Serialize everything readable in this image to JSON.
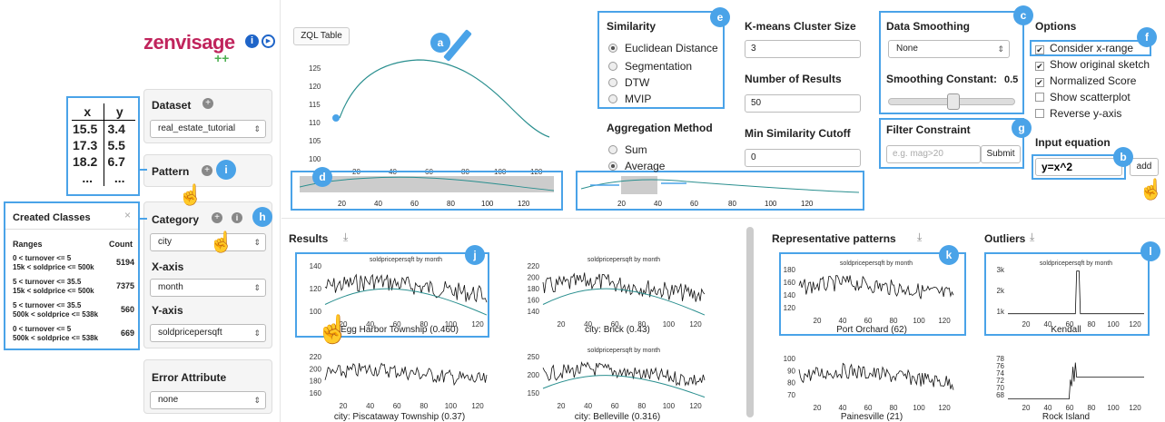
{
  "logo": {
    "text": "zenvisage",
    "plus": "++"
  },
  "left": {
    "dataset_label": "Dataset",
    "dataset_value": "real_estate_tutorial",
    "pattern_label": "Pattern",
    "category_label": "Category",
    "category_value": "city",
    "xaxis_label": "X-axis",
    "xaxis_value": "month",
    "yaxis_label": "Y-axis",
    "yaxis_value": "soldpricepersqft",
    "error_label": "Error Attribute",
    "error_value": "none"
  },
  "xy_table": {
    "headers": [
      "x",
      "y"
    ],
    "rows": [
      [
        "15.5",
        "3.4"
      ],
      [
        "17.3",
        "5.5"
      ],
      [
        "18.2",
        "6.7"
      ],
      [
        "...",
        "..."
      ]
    ]
  },
  "created_classes": {
    "title": "Created Classes",
    "close": "×",
    "col_ranges": "Ranges",
    "col_count": "Count",
    "rows": [
      {
        "l1": "0 < turnover <= 5",
        "l2": "15k < soldprice <= 500k",
        "count": "5194"
      },
      {
        "l1": "5 < turnover <= 35.5",
        "l2": "15k < soldprice <= 500k",
        "count": "7375"
      },
      {
        "l1": "5 < turnover <= 35.5",
        "l2": "500k < soldprice <= 538k",
        "count": "560"
      },
      {
        "l1": "0 < turnover <= 5",
        "l2": "500k < soldprice <= 538k",
        "count": "669"
      }
    ]
  },
  "sketch": {
    "zql_button": "ZQL Table",
    "yticks": [
      "125",
      "120",
      "115",
      "110",
      "105",
      "100"
    ],
    "xticks": [
      "20",
      "40",
      "60",
      "80",
      "100",
      "120"
    ]
  },
  "similarity": {
    "title": "Similarity",
    "options": [
      "Euclidean Distance",
      "Segmentation",
      "DTW",
      "MVIP"
    ],
    "selected": 0
  },
  "aggregation": {
    "title": "Aggregation Method",
    "options": [
      "Sum",
      "Average"
    ],
    "selected": 1
  },
  "kmeans": {
    "title": "K-means Cluster Size",
    "value": "3"
  },
  "num_results": {
    "title": "Number of Results",
    "value": "50"
  },
  "min_sim": {
    "title": "Min Similarity Cutoff",
    "value": "0"
  },
  "smoothing": {
    "title": "Data Smoothing",
    "value": "None",
    "const_label": "Smoothing Constant:",
    "const_value": "0.5",
    "slider_level": 0.5
  },
  "filter": {
    "title": "Filter Constraint",
    "placeholder": "e.g. mag>20",
    "submit": "Submit"
  },
  "options": {
    "title": "Options",
    "items": [
      {
        "label": "Consider x-range",
        "checked": true
      },
      {
        "label": "Show original sketch",
        "checked": true
      },
      {
        "label": "Normalized Score",
        "checked": true
      },
      {
        "label": "Show scatterplot",
        "checked": false
      },
      {
        "label": "Reverse y-axis",
        "checked": false
      }
    ]
  },
  "equation": {
    "title": "Input equation",
    "value": "y=x^2",
    "add": "add"
  },
  "results": {
    "title": "Results",
    "charts": [
      {
        "title": "soldpricepersqft by month",
        "caption": "Egg Harbor Township (0.460)",
        "yticks": [
          "140",
          "120",
          "100"
        ]
      },
      {
        "title": "soldpricepersqft by month",
        "caption": "city: Brick (0.43)",
        "yticks": [
          "220",
          "200",
          "180",
          "160",
          "140"
        ]
      },
      {
        "title": "",
        "caption": "city: Piscataway Township (0.37)",
        "yticks": [
          "220",
          "200",
          "180",
          "160"
        ]
      },
      {
        "title": "soldpricepersqft by month",
        "caption": "city: Belleville (0.316)",
        "yticks": [
          "250",
          "200",
          "150"
        ]
      }
    ],
    "xticks": [
      "20",
      "40",
      "60",
      "80",
      "100",
      "120"
    ]
  },
  "representative": {
    "title": "Representative patterns",
    "charts": [
      {
        "title": "soldpricepersqft by month",
        "caption": "Port Orchard (62)",
        "yticks": [
          "180",
          "160",
          "140",
          "120"
        ]
      },
      {
        "title": "",
        "caption": "Painesville (21)",
        "yticks": [
          "100",
          "90",
          "80",
          "70"
        ]
      }
    ]
  },
  "outliers": {
    "title": "Outliers",
    "charts": [
      {
        "title": "soldpricepersqft by month",
        "caption": "Kendall",
        "yticks": [
          "3k",
          "2k",
          "1k"
        ]
      },
      {
        "title": "",
        "caption": "Rock Island",
        "yticks": [
          "78",
          "76",
          "74",
          "72",
          "70",
          "68"
        ]
      }
    ]
  },
  "badges": [
    "a",
    "b",
    "c",
    "d",
    "e",
    "f",
    "g",
    "h",
    "i",
    "j",
    "k",
    "l"
  ]
}
